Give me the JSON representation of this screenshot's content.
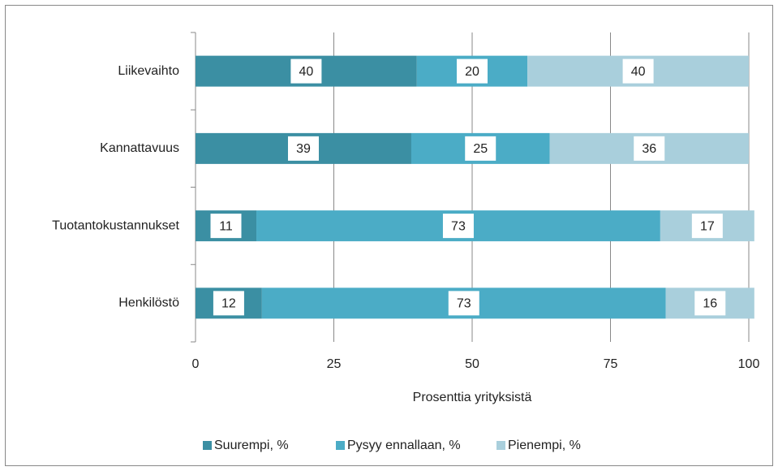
{
  "chart_data": {
    "type": "stacked_barh",
    "categories": [
      "Liikevaihto",
      "Kannattavuus",
      "Tuotantokustannukset",
      "Henkilöstö"
    ],
    "series": [
      {
        "name": "Suurempi, %",
        "color": "#3b8fa3",
        "values": [
          40,
          39,
          11,
          12
        ]
      },
      {
        "name": "Pysyy ennallaan, %",
        "color": "#4bacc6",
        "values": [
          20,
          25,
          73,
          73
        ]
      },
      {
        "name": "Pienempi, %",
        "color": "#a9cfdc",
        "values": [
          40,
          36,
          17,
          16
        ]
      }
    ],
    "xlabel": "Prosenttia yrityksistä",
    "xlim": [
      0,
      100
    ],
    "xticks": [
      0,
      25,
      50,
      75,
      100
    ],
    "grid": true,
    "legend": "bottom"
  }
}
